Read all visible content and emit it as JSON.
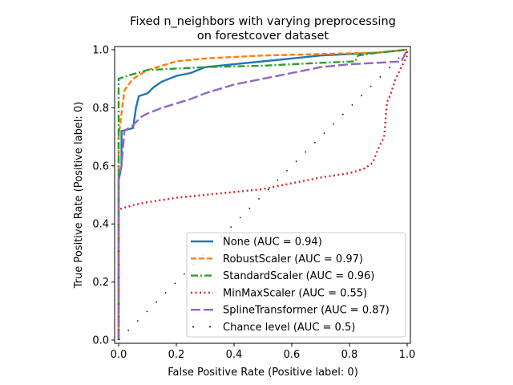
{
  "chart_data": {
    "type": "line",
    "title": "Fixed n_neighbors with varying preprocessing\non forestcover dataset",
    "title_lines": [
      "Fixed n_neighbors with varying preprocessing",
      "on forestcover dataset"
    ],
    "xlabel": "False Positive Rate (Positive label: 0)",
    "ylabel": "True Positive Rate (Positive label: 0)",
    "xlim": [
      0,
      1
    ],
    "ylim": [
      0,
      1
    ],
    "xticks": [
      "0.0",
      "0.2",
      "0.4",
      "0.6",
      "0.8",
      "1.0"
    ],
    "yticks": [
      "0.0",
      "0.2",
      "0.4",
      "0.6",
      "0.8",
      "1.0"
    ],
    "grid": false,
    "legend_placement": "lower-right",
    "series": [
      {
        "name": "None (AUC = 0.94)",
        "color": "#1f77b4",
        "dash": "solid",
        "x": [
          0,
          0,
          0.01,
          0.01,
          0.05,
          0.06,
          0.07,
          0.1,
          0.12,
          0.15,
          0.2,
          0.25,
          0.3,
          0.4,
          0.5,
          0.6,
          0.7,
          0.8,
          0.9,
          1
        ],
        "y": [
          0,
          0.55,
          0.6,
          0.72,
          0.73,
          0.8,
          0.84,
          0.85,
          0.87,
          0.89,
          0.91,
          0.92,
          0.94,
          0.95,
          0.96,
          0.97,
          0.98,
          0.985,
          0.99,
          1
        ]
      },
      {
        "name": "RobustScaler (AUC = 0.97)",
        "color": "#ff7f0e",
        "dash": "dashed",
        "x": [
          0,
          0,
          0.01,
          0.02,
          0.05,
          0.1,
          0.2,
          0.3,
          0.5,
          0.7,
          0.9,
          1
        ],
        "y": [
          0,
          0.7,
          0.78,
          0.86,
          0.9,
          0.93,
          0.96,
          0.97,
          0.98,
          0.985,
          0.99,
          1
        ]
      },
      {
        "name": "StandardScaler (AUC = 0.96)",
        "color": "#2ca02c",
        "dash": "dashdot",
        "x": [
          0,
          0,
          0.03,
          0.1,
          0.3,
          0.5,
          0.7,
          0.82,
          0.83,
          0.9,
          1
        ],
        "y": [
          0,
          0.9,
          0.91,
          0.93,
          0.94,
          0.945,
          0.955,
          0.96,
          0.98,
          0.99,
          1
        ]
      },
      {
        "name": "MinMaxScaler (AUC = 0.55)",
        "color": "#d62728",
        "dash": "dotted",
        "x": [
          0,
          0,
          0.05,
          0.1,
          0.2,
          0.3,
          0.4,
          0.5,
          0.6,
          0.7,
          0.8,
          0.85,
          0.88,
          0.9,
          0.92,
          0.93,
          0.94,
          0.96,
          0.98,
          1,
          1
        ],
        "y": [
          0,
          0.45,
          0.465,
          0.475,
          0.49,
          0.5,
          0.51,
          0.52,
          0.54,
          0.56,
          0.575,
          0.59,
          0.61,
          0.66,
          0.7,
          0.82,
          0.84,
          0.9,
          0.94,
          0.98,
          1
        ]
      },
      {
        "name": "SplineTransformer (AUC = 0.87)",
        "color": "#9467bd",
        "dash": "longdash",
        "x": [
          0,
          0,
          0.01,
          0.02,
          0.05,
          0.08,
          0.1,
          0.15,
          0.25,
          0.3,
          0.4,
          0.5,
          0.6,
          0.7,
          0.8,
          0.9,
          0.98,
          0.99,
          1
        ],
        "y": [
          0,
          0.57,
          0.6,
          0.72,
          0.74,
          0.77,
          0.78,
          0.8,
          0.83,
          0.85,
          0.88,
          0.9,
          0.92,
          0.94,
          0.95,
          0.955,
          0.96,
          0.98,
          1
        ]
      },
      {
        "name": "Chance level (AUC = 0.5)",
        "color": "#000000",
        "dash": "chance",
        "x": [
          0,
          1
        ],
        "y": [
          0,
          1
        ]
      }
    ]
  }
}
